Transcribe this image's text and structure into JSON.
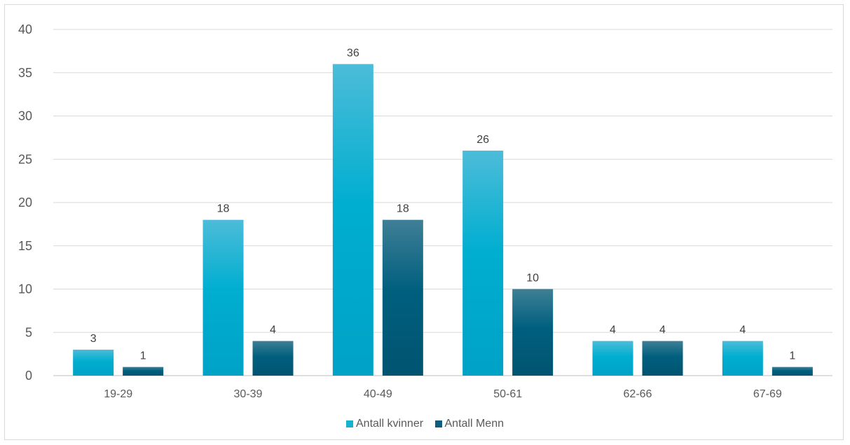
{
  "chart_data": {
    "type": "bar",
    "title": "",
    "xlabel": "",
    "ylabel": "",
    "categories": [
      "19-29",
      "30-39",
      "40-49",
      "50-61",
      "62-66",
      "67-69"
    ],
    "series": [
      {
        "name": "Antall kvinner",
        "values": [
          3,
          18,
          36,
          26,
          4,
          4
        ],
        "color": "#17b2d1"
      },
      {
        "name": "Antall Menn",
        "values": [
          1,
          4,
          18,
          10,
          4,
          1
        ],
        "color": "#0c5f7d"
      }
    ],
    "ylim": [
      0,
      40
    ],
    "yticks": [
      0,
      5,
      10,
      15,
      20,
      25,
      30,
      35,
      40
    ],
    "grid": true,
    "legend_position": "bottom",
    "data_labels": true
  }
}
